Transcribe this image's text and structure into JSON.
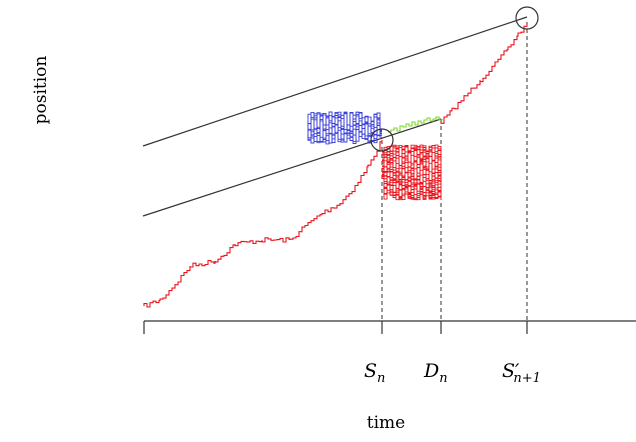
{
  "ylabel": "position",
  "xlabel": "time",
  "tick_labels": [
    {
      "main": "S",
      "sub": "n",
      "prime": ""
    },
    {
      "main": "D",
      "sub": "n",
      "prime": ""
    },
    {
      "main": "S",
      "sub": "n+1",
      "prime": "′"
    }
  ],
  "colors": {
    "main_path": "#e8141c",
    "blue_excursion": "#3a3fd6",
    "green_excursion": "#7fd62a",
    "lines": "#333333"
  }
}
